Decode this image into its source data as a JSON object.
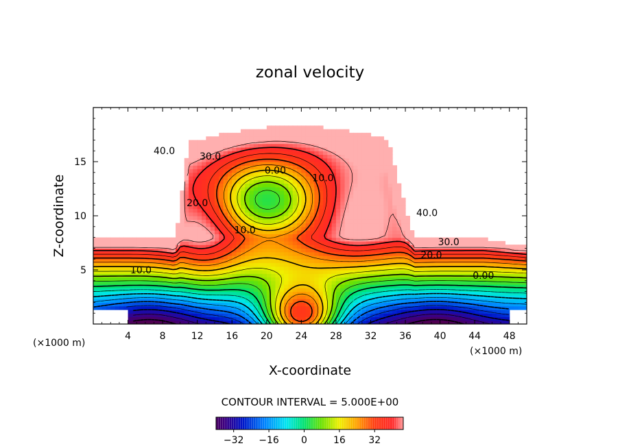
{
  "chart_data": {
    "type": "heatmap",
    "title": "zonal velocity",
    "xlabel": "X-coordinate",
    "ylabel": "Z-coordinate",
    "x_unit": "(×1000 m)",
    "x_ticks": [
      4,
      8,
      12,
      16,
      20,
      24,
      28,
      32,
      36,
      40,
      44,
      48
    ],
    "y_ticks": [
      5,
      10,
      15
    ],
    "xlim": [
      0,
      50
    ],
    "ylim": [
      0,
      20
    ],
    "contour_interval_text": "CONTOUR INTERVAL = 5.000E+00",
    "colorbar": {
      "min": -40,
      "max": 45,
      "ticks": [
        -32,
        -16,
        0,
        16,
        32
      ],
      "tick_labels": [
        "−32",
        "−16",
        "0",
        "16",
        "32"
      ]
    },
    "contour_labels": [
      {
        "text": "40.0",
        "x": 8.2,
        "z": 16.0
      },
      {
        "text": "30.0",
        "x": 13.5,
        "z": 15.5
      },
      {
        "text": "0.00",
        "x": 21.0,
        "z": 14.2
      },
      {
        "text": "10.0",
        "x": 26.5,
        "z": 13.5
      },
      {
        "text": "20.0",
        "x": 12.0,
        "z": 11.2
      },
      {
        "text": "10.0",
        "x": 17.5,
        "z": 8.7
      },
      {
        "text": "40.0",
        "x": 38.5,
        "z": 10.3
      },
      {
        "text": "30.0",
        "x": 41.0,
        "z": 7.6
      },
      {
        "text": "20.0",
        "x": 39.0,
        "z": 6.4
      },
      {
        "text": "10.0",
        "x": 5.5,
        "z": 5.0
      },
      {
        "text": "0.00",
        "x": 45.0,
        "z": 4.5
      }
    ],
    "fields": [
      {
        "name": "upper_jet",
        "x": 22,
        "z": 17.5,
        "peak": 46
      },
      {
        "name": "core_minimum",
        "x": 20,
        "z": 11.5,
        "peak": -5
      },
      {
        "name": "left_low_minimum",
        "x": 6.5,
        "z": 0.5,
        "peak": -40
      },
      {
        "name": "right_low_minimum",
        "x": 39.5,
        "z": 0.5,
        "peak": -40
      },
      {
        "name": "bottom_jet",
        "x": 24,
        "z": 0.3,
        "peak": 42
      }
    ]
  }
}
